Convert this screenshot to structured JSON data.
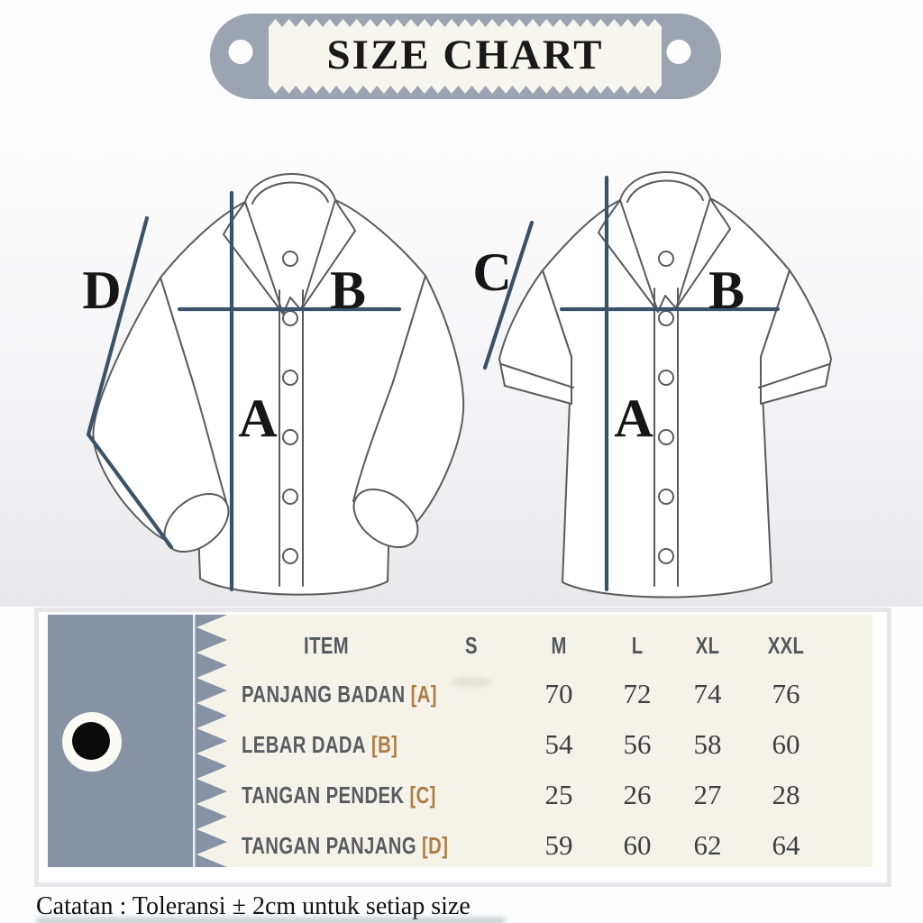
{
  "banner": {
    "title": "SIZE CHART"
  },
  "diagram": {
    "letters": {
      "a": "A",
      "b": "B",
      "c": "C",
      "d": "D"
    },
    "left_shirt": "long-sleeve shirt outline",
    "right_shirt": "short-sleeve shirt outline"
  },
  "table": {
    "headers": {
      "item": "ITEM",
      "s": "S",
      "m": "M",
      "l": "L",
      "xl": "XL",
      "xxl": "XXL"
    },
    "rows": [
      {
        "item": "PANJANG BADAN",
        "code": "[A]",
        "s": "",
        "m": "70",
        "l": "72",
        "xl": "74",
        "xxl": "76"
      },
      {
        "item": "LEBAR DADA",
        "code": "[B]",
        "s": "",
        "m": "54",
        "l": "56",
        "xl": "58",
        "xxl": "60"
      },
      {
        "item": "TANGAN PENDEK",
        "code": "[C]",
        "s": "",
        "m": "25",
        "l": "26",
        "xl": "27",
        "xxl": "28"
      },
      {
        "item": "TANGAN PANJANG",
        "code": "[D]",
        "s": "",
        "m": "59",
        "l": "60",
        "xl": "62",
        "xxl": "64"
      }
    ]
  },
  "note": "Catatan : Toleransi ± 2cm untuk setiap size",
  "chart_data": {
    "type": "table",
    "title": "SIZE CHART",
    "categories": [
      "S",
      "M",
      "L",
      "XL",
      "XXL"
    ],
    "series": [
      {
        "name": "PANJANG BADAN [A]",
        "values": [
          null,
          70,
          72,
          74,
          76
        ]
      },
      {
        "name": "LEBAR DADA [B]",
        "values": [
          null,
          54,
          56,
          58,
          60
        ]
      },
      {
        "name": "TANGAN PENDEK [C]",
        "values": [
          null,
          25,
          26,
          27,
          28
        ]
      },
      {
        "name": "TANGAN PANJANG [D]",
        "values": [
          null,
          59,
          60,
          62,
          64
        ]
      }
    ],
    "note": "Catatan : Toleransi ± 2cm untuk setiap size"
  },
  "colors": {
    "banner_pill": "#9ca4b2",
    "banner_label": "#f6f5ee",
    "tag_slate": "#8793a5",
    "cream_label": "#f5f3e9",
    "bracket_accent": "#ae7c45",
    "measure_line": "#3b5368",
    "shirt_stroke": "#5b5b5d"
  }
}
